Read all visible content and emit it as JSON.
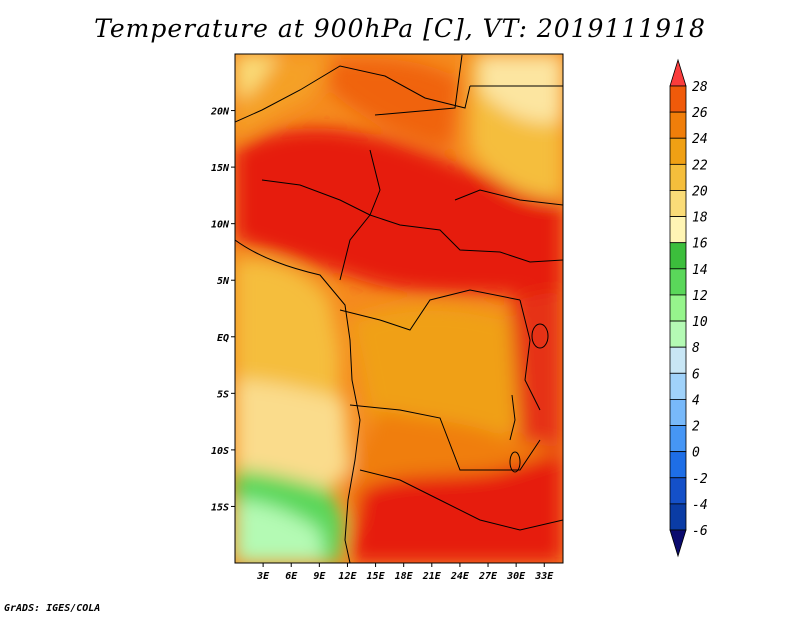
{
  "title": "Temperature at 900hPa [C], VT: 2019111918",
  "credit": "GrADS: IGES/COLA",
  "map": {
    "lon_range": [
      0,
      35
    ],
    "lat_range": [
      -20,
      25
    ],
    "lat_ticks": [
      {
        "label": "20N",
        "lat": 20
      },
      {
        "label": "15N",
        "lat": 15
      },
      {
        "label": "10N",
        "lat": 10
      },
      {
        "label": "5N",
        "lat": 5
      },
      {
        "label": "EQ",
        "lat": 0
      },
      {
        "label": "5S",
        "lat": -5
      },
      {
        "label": "10S",
        "lat": -10
      },
      {
        "label": "15S",
        "lat": -15
      }
    ],
    "lon_ticks": [
      {
        "label": "3E",
        "lon": 3
      },
      {
        "label": "6E",
        "lon": 6
      },
      {
        "label": "9E",
        "lon": 9
      },
      {
        "label": "12E",
        "lon": 12
      },
      {
        "label": "15E",
        "lon": 15
      },
      {
        "label": "18E",
        "lon": 18
      },
      {
        "label": "21E",
        "lon": 21
      },
      {
        "label": "24E",
        "lon": 24
      },
      {
        "label": "27E",
        "lon": 27
      },
      {
        "label": "30E",
        "lon": 30
      },
      {
        "label": "33E",
        "lon": 33
      }
    ]
  },
  "colorbar": {
    "levels": [
      "28",
      "26",
      "24",
      "22",
      "20",
      "18",
      "16",
      "14",
      "12",
      "10",
      "8",
      "6",
      "4",
      "2",
      "0",
      "-2",
      "-4",
      "-6"
    ],
    "colors": [
      "#fa3c3c",
      "#f05a0a",
      "#f07e0a",
      "#f0a014",
      "#f5be3c",
      "#fadc78",
      "#fff5b4",
      "#3cbe3c",
      "#5ad75a",
      "#96f58c",
      "#b4fab4",
      "#c8e6f5",
      "#a0d2fa",
      "#78b9fa",
      "#4696f5",
      "#1e6ee6",
      "#1450c8",
      "#0a3ca5",
      "#0a0a6e"
    ]
  }
}
